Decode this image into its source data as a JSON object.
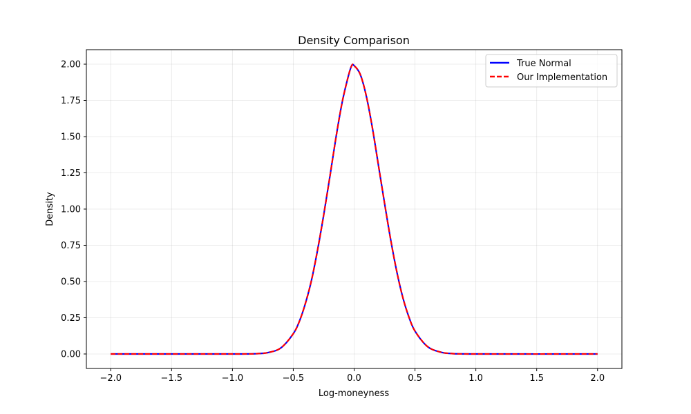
{
  "chart_data": {
    "type": "line",
    "title": "Density Comparison",
    "xlabel": "Log-moneyness",
    "ylabel": "Density",
    "xlim": [
      -2.2,
      2.2
    ],
    "ylim": [
      -0.1,
      2.1
    ],
    "xticks": [
      -2.0,
      -1.5,
      -1.0,
      -0.5,
      0.0,
      0.5,
      1.0,
      1.5,
      2.0
    ],
    "xtick_labels": [
      "−2.0",
      "−1.5",
      "−1.0",
      "−0.5",
      "0.0",
      "0.5",
      "1.0",
      "1.5",
      "2.0"
    ],
    "yticks": [
      0.0,
      0.25,
      0.5,
      0.75,
      1.0,
      1.25,
      1.5,
      1.75,
      2.0
    ],
    "ytick_labels": [
      "0.00",
      "0.25",
      "0.50",
      "0.75",
      "1.00",
      "1.25",
      "1.50",
      "1.75",
      "2.00"
    ],
    "grid": true,
    "legend_position": "top-right",
    "x": [
      -2.0,
      -1.0,
      -0.8,
      -0.7,
      -0.6,
      -0.5,
      -0.45,
      -0.4,
      -0.35,
      -0.3,
      -0.25,
      -0.2,
      -0.15,
      -0.1,
      -0.05,
      -0.02,
      0.0,
      0.05,
      0.1,
      0.15,
      0.2,
      0.25,
      0.3,
      0.35,
      0.4,
      0.45,
      0.5,
      0.6,
      0.7,
      0.8,
      1.0,
      2.0
    ],
    "series": [
      {
        "name": "True Normal",
        "color": "#0000ff",
        "style": "solid",
        "values": [
          0.0,
          0.0,
          0.002,
          0.011,
          0.043,
          0.14,
          0.225,
          0.35,
          0.51,
          0.72,
          0.96,
          1.22,
          1.49,
          1.73,
          1.91,
          1.99,
          1.99,
          1.93,
          1.78,
          1.56,
          1.3,
          1.04,
          0.79,
          0.57,
          0.39,
          0.255,
          0.158,
          0.053,
          0.015,
          0.003,
          0.0,
          0.0
        ]
      },
      {
        "name": "Our Implementation",
        "color": "#ff0000",
        "style": "dashed",
        "values": [
          0.0,
          0.0,
          0.002,
          0.011,
          0.043,
          0.14,
          0.225,
          0.35,
          0.51,
          0.72,
          0.96,
          1.22,
          1.49,
          1.73,
          1.91,
          1.99,
          1.99,
          1.93,
          1.78,
          1.56,
          1.3,
          1.04,
          0.79,
          0.57,
          0.39,
          0.255,
          0.158,
          0.053,
          0.015,
          0.003,
          0.0,
          0.0
        ]
      }
    ]
  }
}
